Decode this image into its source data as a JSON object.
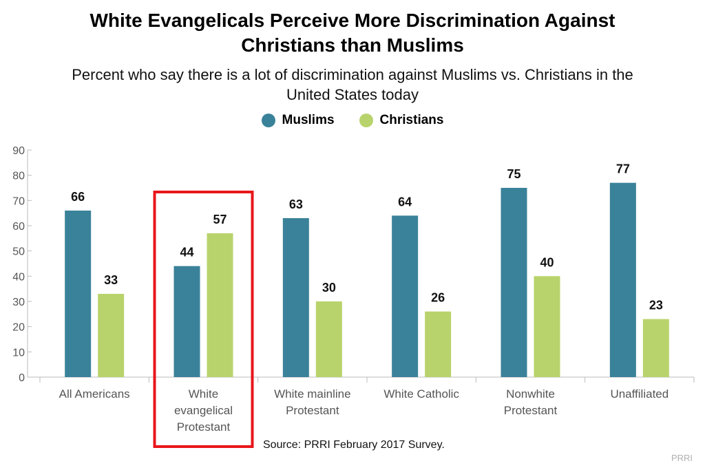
{
  "header": {
    "title_line1": "White Evangelicals Perceive More Discrimination Against",
    "title_line2": "Christians than Muslims",
    "subtitle_line1": "Percent who say there is a lot of discrimination against Muslims vs. Christians in the",
    "subtitle_line2": "United States today"
  },
  "legend": {
    "items": [
      {
        "label": "Muslims",
        "color": "#3a8299"
      },
      {
        "label": "Christians",
        "color": "#b8d36c"
      }
    ]
  },
  "footer": {
    "source": "Source: PRRI February 2017 Survey.",
    "brand": "PRRI"
  },
  "chart_data": {
    "type": "bar",
    "categories": [
      [
        "All Americans"
      ],
      [
        "White",
        "evangelical",
        "Protestant"
      ],
      [
        "White mainline",
        "Protestant"
      ],
      [
        "White Catholic"
      ],
      [
        "Nonwhite",
        "Protestant"
      ],
      [
        "Unaffiliated"
      ]
    ],
    "series": [
      {
        "name": "Muslims",
        "color": "#3a8299",
        "values": [
          66,
          44,
          63,
          64,
          75,
          77
        ]
      },
      {
        "name": "Christians",
        "color": "#b8d36c",
        "values": [
          33,
          57,
          30,
          26,
          40,
          23
        ]
      }
    ],
    "ylim": [
      0,
      90
    ],
    "yticks": [
      0,
      10,
      20,
      30,
      40,
      50,
      60,
      70,
      80,
      90
    ],
    "data_labels": true,
    "grid": false,
    "highlighted_category_index": 1,
    "highlight_color": "#e8161b",
    "legend_position": "top-center",
    "xlabel": "",
    "ylabel": ""
  }
}
